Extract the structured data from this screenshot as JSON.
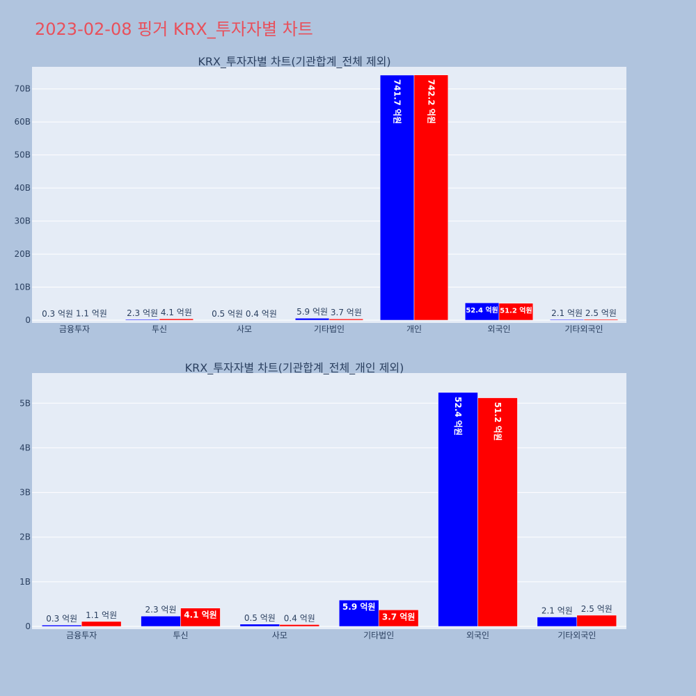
{
  "page_title": "2023-02-08 핑거 KRX_투자자별 차트",
  "colors": {
    "buy": "#0000ff",
    "sell": "#ff0000",
    "plot_bg": "#e5ecf6",
    "page_bg": "#b0c4de",
    "title": "#e8505b"
  },
  "chart_data": [
    {
      "type": "bar",
      "title": "KRX_투자자별 차트(기관합계_전체 제외)",
      "categories": [
        "금융투자",
        "투신",
        "사모",
        "기타법인",
        "개인",
        "외국인",
        "기타외국인"
      ],
      "series": [
        {
          "values": [
            30000000,
            230000000,
            50000000,
            590000000,
            74170000000,
            5240000000,
            210000000
          ],
          "labels": [
            "0.3 억원",
            "2.3 억원",
            "0.5 억원",
            "5.9 억원",
            "741.7 억원",
            "52.4 억원",
            "2.1 억원"
          ]
        },
        {
          "values": [
            110000000,
            410000000,
            40000000,
            370000000,
            74220000000,
            5120000000,
            250000000
          ],
          "labels": [
            "1.1 억원",
            "4.1 억원",
            "0.4 억원",
            "3.7 억원",
            "742.2 억원",
            "51.2 억원",
            "2.5 억원"
          ]
        }
      ],
      "ylim": [
        0,
        75000000000
      ],
      "yticks": [
        0,
        10000000000,
        20000000000,
        30000000000,
        40000000000,
        50000000000,
        60000000000,
        70000000000
      ],
      "ytick_labels": [
        "0",
        "10B",
        "20B",
        "30B",
        "40B",
        "50B",
        "60B",
        "70B"
      ],
      "grid": true
    },
    {
      "type": "bar",
      "title": "KRX_투자자별 차트(기관합계_전체_개인 제외)",
      "categories": [
        "금융투자",
        "투신",
        "사모",
        "기타법인",
        "외국인",
        "기타외국인"
      ],
      "series": [
        {
          "values": [
            30000000,
            230000000,
            50000000,
            590000000,
            5240000000,
            210000000
          ],
          "labels": [
            "0.3 억원",
            "2.3 억원",
            "0.5 억원",
            "5.9 억원",
            "52.4 억원",
            "2.1 억원"
          ]
        },
        {
          "values": [
            110000000,
            410000000,
            40000000,
            370000000,
            5120000000,
            250000000
          ],
          "labels": [
            "1.1 억원",
            "4.1 억원",
            "0.4 억원",
            "3.7 억원",
            "51.2 억원",
            "2.5 억원"
          ]
        }
      ],
      "ylim": [
        0,
        5550000000
      ],
      "yticks": [
        0,
        1000000000,
        2000000000,
        3000000000,
        4000000000,
        5000000000
      ],
      "ytick_labels": [
        "0",
        "1B",
        "2B",
        "3B",
        "4B",
        "5B"
      ],
      "grid": true
    }
  ]
}
